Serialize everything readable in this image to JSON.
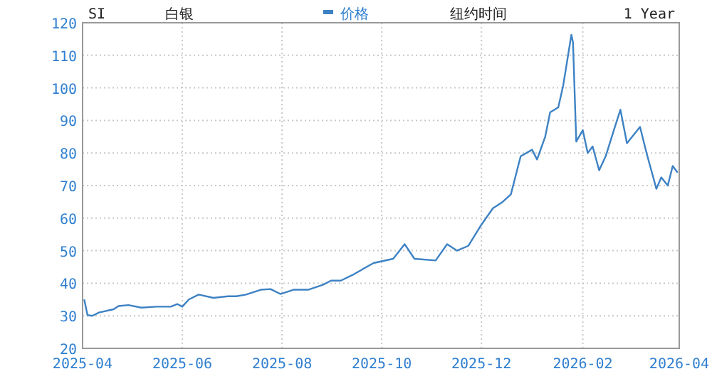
{
  "chart_data": {
    "type": "line",
    "annotations": [
      "SI",
      "白银",
      "纽约时间",
      "1 Year"
    ],
    "x": [
      "2025-04-02",
      "2025-04-04",
      "2025-04-07",
      "2025-04-11",
      "2025-04-20",
      "2025-04-23",
      "2025-04-29",
      "2025-05-07",
      "2025-05-16",
      "2025-05-25",
      "2025-05-29",
      "2025-06-01",
      "2025-06-05",
      "2025-06-11",
      "2025-06-20",
      "2025-06-29",
      "2025-07-04",
      "2025-07-10",
      "2025-07-19",
      "2025-07-25",
      "2025-07-31",
      "2025-08-08",
      "2025-08-17",
      "2025-08-26",
      "2025-08-31",
      "2025-09-06",
      "2025-09-13",
      "2025-09-26",
      "2025-10-08",
      "2025-10-15",
      "2025-10-21",
      "2025-11-03",
      "2025-11-10",
      "2025-11-16",
      "2025-11-23",
      "2025-12-01",
      "2025-12-08",
      "2025-12-14",
      "2025-12-19",
      "2025-12-25",
      "2026-01-01",
      "2026-01-04",
      "2026-01-09",
      "2026-01-12",
      "2026-01-17",
      "2026-01-20",
      "2026-01-25",
      "2026-01-26",
      "2026-01-28",
      "2026-02-01",
      "2026-02-04",
      "2026-02-07",
      "2026-02-11",
      "2026-02-15",
      "2026-02-20",
      "2026-02-24",
      "2026-02-28",
      "2026-03-08",
      "2026-03-12",
      "2026-03-18",
      "2026-03-21",
      "2026-03-25",
      "2026-03-28",
      "2026-03-31"
    ],
    "series": [
      {
        "name": "价格",
        "color": "#3d82c4",
        "values": [
          35,
          30.2,
          30,
          31,
          32,
          33,
          33.3,
          32.5,
          32.8,
          32.8,
          33.6,
          32.8,
          35,
          36.5,
          35.5,
          36,
          36,
          36.5,
          38,
          38.2,
          36.7,
          38,
          38,
          39.5,
          40.8,
          40.8,
          42.5,
          46.2,
          47.5,
          52,
          47.5,
          47,
          52,
          50,
          51.5,
          58,
          63,
          65,
          67.3,
          79,
          81,
          78,
          85,
          92.5,
          94,
          100.7,
          116.3,
          114,
          83.5,
          87,
          80,
          82,
          74.7,
          79,
          87,
          93.3,
          83,
          88,
          80,
          69,
          72.5,
          70,
          76,
          74
        ]
      }
    ],
    "xlim": [
      "2025-04-01",
      "2026-04-01"
    ],
    "xticks": [
      {
        "value": "2025-04-01",
        "label": "2025-04"
      },
      {
        "value": "2025-06-01",
        "label": "2025-06"
      },
      {
        "value": "2025-08-01",
        "label": "2025-08"
      },
      {
        "value": "2025-10-01",
        "label": "2025-10"
      },
      {
        "value": "2025-12-01",
        "label": "2025-12"
      },
      {
        "value": "2026-02-01",
        "label": "2026-02"
      },
      {
        "value": "2026-04-01",
        "label": "2026-04"
      }
    ],
    "ylim": [
      20,
      120
    ],
    "yticks": [
      20,
      30,
      40,
      50,
      60,
      70,
      80,
      90,
      100,
      110,
      120
    ],
    "grid": true,
    "legend": "top",
    "marker": "none",
    "line_style": "solid"
  }
}
